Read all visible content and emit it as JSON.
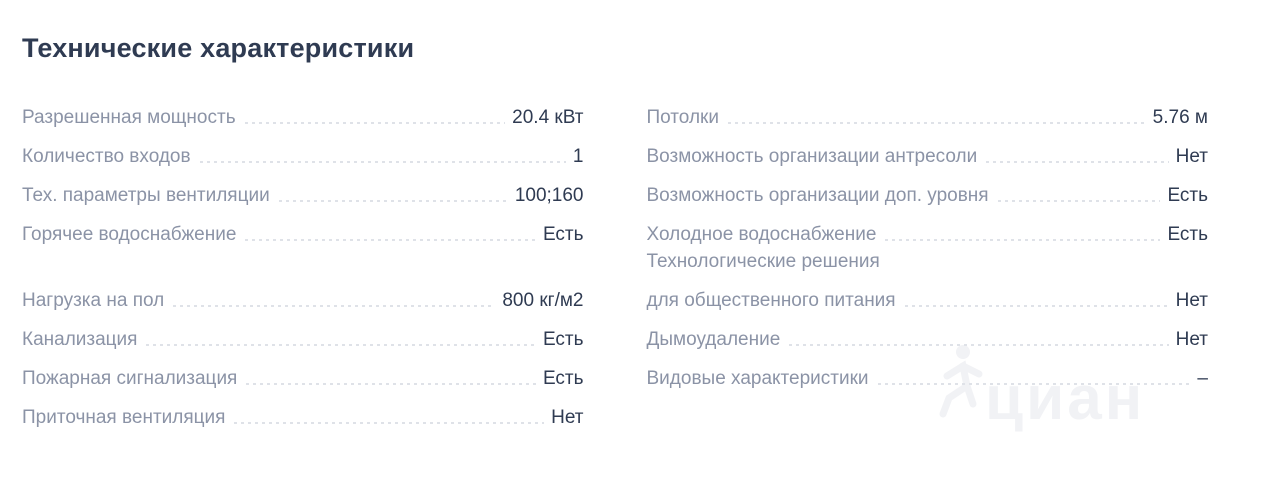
{
  "page": {
    "title": "Технические характеристики"
  },
  "colors": {
    "heading_text": "#2f3b52",
    "label_text": "#8b93a6",
    "value_text": "#2f3b52",
    "dotted_leader": "#dfe2e8",
    "watermark": "#f1f2f5",
    "background": "#ffffff"
  },
  "columns": {
    "left": {
      "rows": [
        {
          "label": "Разрешенная мощность",
          "value": "20.4 кВт"
        },
        {
          "label": "Количество входов",
          "value": "1"
        },
        {
          "label": "Тех. параметры вентиляции",
          "value": "100;160"
        },
        {
          "label": "Горячее водоснабжение",
          "value": "Есть"
        },
        {
          "label": "Нагрузка на пол",
          "value": "800 кг/м2",
          "group_break": true
        },
        {
          "label": "Канализация",
          "value": "Есть"
        },
        {
          "label": "Пожарная сигнализация",
          "value": "Есть"
        },
        {
          "label": "Приточная вентиляция",
          "value": "Нет"
        }
      ]
    },
    "right": {
      "rows": [
        {
          "label": "Потолки",
          "value": "5.76 м"
        },
        {
          "label": "Возможность организации антресоли",
          "value": "Нет"
        },
        {
          "label": "Возможность организации доп. уровня",
          "value": "Есть"
        },
        {
          "label": "Холодное водоснабжение",
          "value": "Есть"
        },
        {
          "label_lines": [
            "Технологические решения",
            "для общественного питания"
          ],
          "value": "Нет"
        },
        {
          "label": "Дымоудаление",
          "value": "Нет"
        },
        {
          "label": "Видовые характеристики",
          "value": "–"
        }
      ]
    }
  },
  "watermark": {
    "text": "циан"
  }
}
